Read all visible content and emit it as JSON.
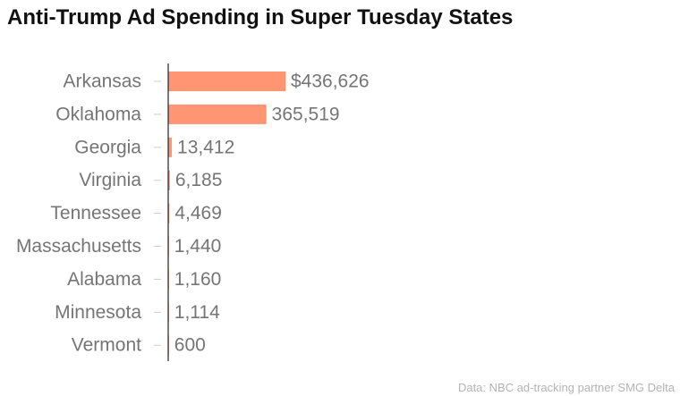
{
  "chart_data": {
    "type": "bar",
    "orientation": "horizontal",
    "title": "Anti-Trump Ad Spending in Super Tuesday States",
    "source": "Data: NBC ad-tracking partner SMG Delta",
    "categories": [
      "Arkansas",
      "Oklahoma",
      "Georgia",
      "Virginia",
      "Tennessee",
      "Massachusetts",
      "Alabama",
      "Minnesota",
      "Vermont"
    ],
    "values": [
      436626,
      365519,
      13412,
      6185,
      4469,
      1440,
      1160,
      1114,
      600
    ],
    "value_labels": [
      "$436,626",
      "365,519",
      "13,412",
      "6,185",
      "4,469",
      "1,440",
      "1,160",
      "1,114",
      "600"
    ],
    "xlim": [
      0,
      436626
    ],
    "bar_color": "#ff9572",
    "axis_color": "#222222",
    "tick_color": "#cccccc",
    "grid": false,
    "legend": "none"
  }
}
